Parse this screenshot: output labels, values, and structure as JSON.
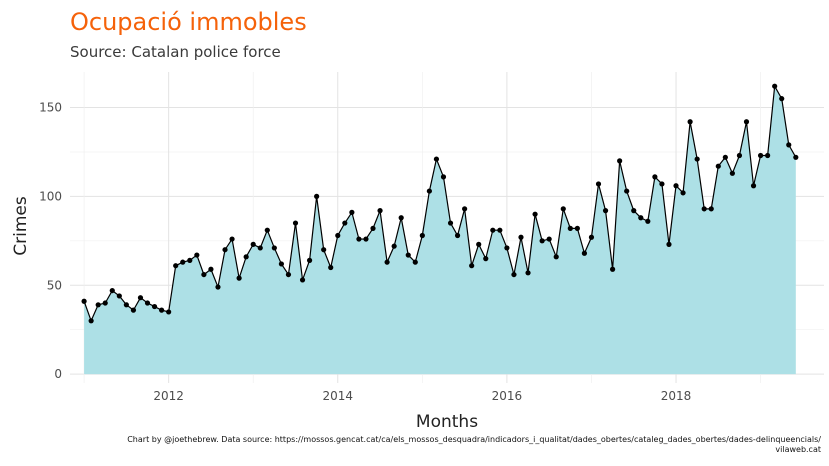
{
  "chart_data": {
    "type": "area",
    "title": "Ocupació immobles",
    "subtitle": "Source: Catalan police force",
    "xlabel": "Months",
    "ylabel": "Crimes",
    "caption_line1": "Chart by @joethebrew. Data source: https://mossos.gencat.cat/ca/els_mossos_desquadra/indicadors_i_qualitat/dades_obertes/cataleg_dades_obertes/dades-delinqueencials/",
    "caption_line2": "vilaweb.cat",
    "x_ticks": [
      "2012",
      "2014",
      "2016",
      "2018"
    ],
    "y_ticks": [
      0,
      50,
      100,
      150
    ],
    "xlim": [
      "2010-11",
      "2019-10"
    ],
    "ylim": [
      -5,
      170
    ],
    "grid": true,
    "start_month": "2011-01",
    "values": [
      41,
      30,
      39,
      40,
      47,
      44,
      39,
      36,
      43,
      40,
      38,
      36,
      35,
      61,
      63,
      64,
      67,
      56,
      59,
      49,
      70,
      76,
      54,
      66,
      73,
      71,
      81,
      71,
      62,
      56,
      85,
      53,
      64,
      100,
      70,
      60,
      78,
      85,
      91,
      76,
      76,
      82,
      92,
      63,
      72,
      88,
      67,
      63,
      78,
      103,
      121,
      111,
      85,
      78,
      93,
      61,
      73,
      65,
      81,
      81,
      71,
      56,
      77,
      57,
      90,
      75,
      76,
      66,
      93,
      82,
      82,
      68,
      77,
      107,
      92,
      59,
      120,
      103,
      92,
      88,
      86,
      111,
      107,
      73,
      106,
      102,
      142,
      121,
      93,
      93,
      117,
      122,
      113,
      123,
      142,
      106,
      123,
      123,
      162,
      155,
      129,
      122
    ],
    "colors": {
      "title": "#f5620a",
      "fill": "#ade0e6",
      "line": "#000000",
      "point": "#000000"
    }
  }
}
